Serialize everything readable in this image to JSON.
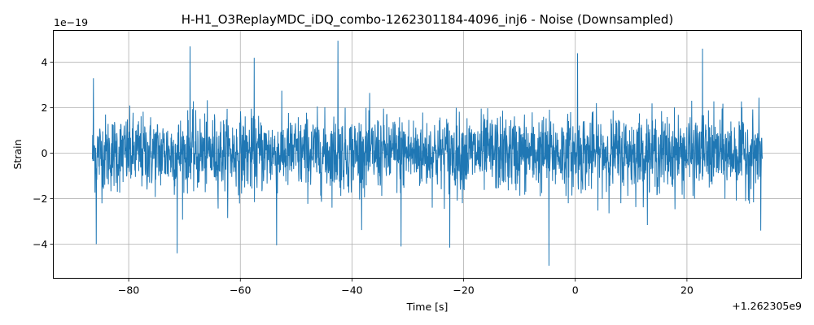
{
  "chart_data": {
    "type": "line",
    "title": "H-H1_O3ReplayMDC_iDQ_combo-1262301184-4096_inj6 - Noise (Downsampled)",
    "xlabel": "Time [s]",
    "ylabel": "Strain",
    "x_offset_label": "+1.262305e9",
    "y_scale_label": "1e−19",
    "xlim": [
      -93.5,
      40.5
    ],
    "ylim": [
      -5.5,
      5.4
    ],
    "grid": true,
    "x_ticks": [
      -80,
      -60,
      -40,
      -20,
      0,
      20
    ],
    "y_ticks": [
      -4,
      -2,
      0,
      2,
      4
    ],
    "x_tick_labels": [
      "−80",
      "−60",
      "−40",
      "−20",
      "0",
      "20"
    ],
    "y_tick_labels": [
      "−4",
      "−2",
      "0",
      "2",
      "4"
    ],
    "series": [
      {
        "color": "#1f77b4",
        "x_start": -86.5,
        "x_end": 33.5,
        "typical_envelope": [
          -2.0,
          2.0
        ],
        "extremes": [
          {
            "x": -85.8,
            "y": -4.0
          },
          {
            "x": -71.3,
            "y": -4.4
          },
          {
            "x": -69.0,
            "y": 4.7
          },
          {
            "x": -57.5,
            "y": 4.2
          },
          {
            "x": -53.5,
            "y": -4.05
          },
          {
            "x": -42.5,
            "y": 4.95
          },
          {
            "x": -31.2,
            "y": -4.1
          },
          {
            "x": -22.5,
            "y": -4.15
          },
          {
            "x": -4.7,
            "y": -4.95
          },
          {
            "x": 0.4,
            "y": 4.4
          },
          {
            "x": 22.8,
            "y": 4.6
          },
          {
            "x": -86.3,
            "y": 3.3
          },
          {
            "x": 33.2,
            "y": -3.4
          }
        ]
      }
    ]
  }
}
